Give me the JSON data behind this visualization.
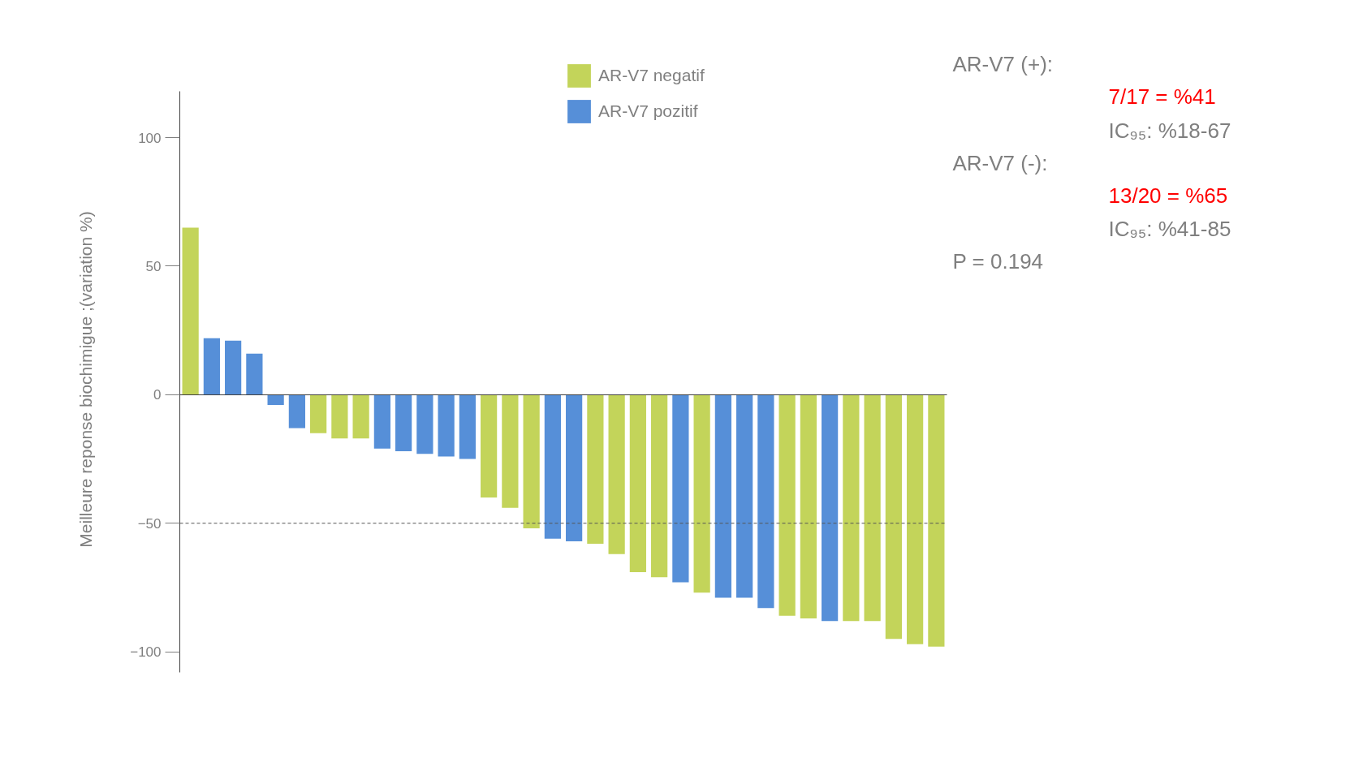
{
  "chart_data": {
    "type": "bar",
    "ylabel": "Meilleure reponse biochimigue ;(variation %)",
    "categories": [
      null,
      null,
      null,
      null,
      null,
      null,
      null,
      null,
      null,
      null,
      null,
      null,
      null,
      null,
      null,
      null,
      null,
      null,
      null,
      null,
      null,
      null,
      null,
      null,
      null,
      null,
      null,
      null,
      null,
      null,
      null,
      null,
      null,
      null,
      null,
      null
    ],
    "series": [
      {
        "name": "AR-V7 negatif",
        "color": "#c3d45a",
        "values": [
          65,
          null,
          null,
          null,
          null,
          null,
          -15,
          -17,
          -17,
          null,
          null,
          null,
          null,
          null,
          -40,
          -44,
          -52,
          null,
          null,
          -58,
          -62,
          -69,
          -71,
          null,
          -77,
          null,
          null,
          null,
          -86,
          -87,
          null,
          -88,
          -88,
          -95,
          -97,
          -98
        ]
      },
      {
        "name": "AR-V7 pozitif",
        "color": "#568fd8",
        "values": [
          null,
          22,
          21,
          16,
          -4,
          -13,
          null,
          null,
          null,
          -21,
          -22,
          -23,
          -24,
          -25,
          null,
          null,
          null,
          -56,
          -57,
          null,
          null,
          null,
          null,
          -73,
          null,
          -79,
          -79,
          -83,
          null,
          null,
          -88,
          null,
          null,
          null,
          null,
          null
        ]
      }
    ],
    "ylim": [
      -108,
      118
    ],
    "yticks": [
      -100,
      -50,
      0,
      50,
      100
    ],
    "ref_lines": [
      {
        "axis": "y",
        "value": -50,
        "label": null,
        "color": "#555555",
        "line_style": "dashed"
      }
    ],
    "annotations": [
      "AR-V7 (+):",
      "7/17 = %41",
      "IC₉₅: %18-67",
      "AR-V7 (-):",
      "13/20 = %65",
      "IC₉₅: %41-85",
      "P = 0.194"
    ],
    "legend": "top",
    "grid": false,
    "tick_labels": "y"
  }
}
